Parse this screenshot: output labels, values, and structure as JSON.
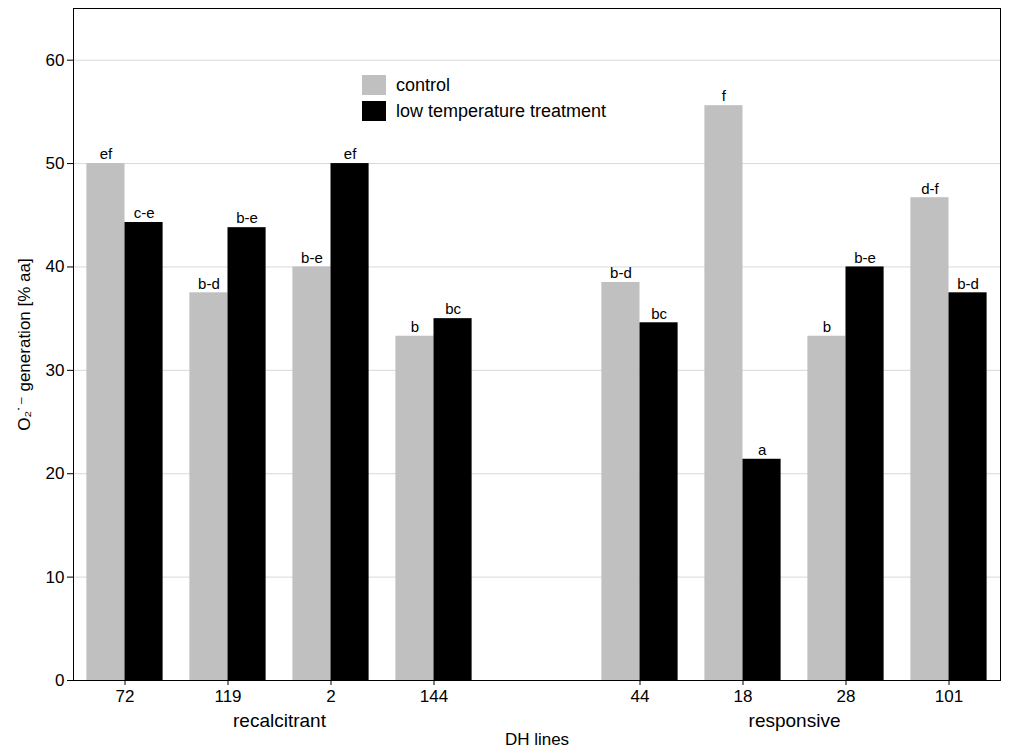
{
  "chart_data": {
    "type": "bar",
    "x_label": "DH lines",
    "y_label": "O₂˙⁻ generation [% aa]",
    "categories": [
      "72",
      "119",
      "2",
      "144",
      null,
      "44",
      "18",
      "28",
      "101"
    ],
    "groups": [
      {
        "label": "recalcitrant",
        "categories": [
          "72",
          "119",
          "2",
          "144"
        ]
      },
      {
        "label": "responsive",
        "categories": [
          "44",
          "18",
          "28",
          "101"
        ]
      }
    ],
    "series": [
      {
        "name": "control",
        "color": "#c0c0c0",
        "values": [
          50,
          37.5,
          40,
          33.3,
          null,
          38.5,
          55.6,
          33.3,
          46.7
        ],
        "annotations": [
          "ef",
          "b-d",
          "b-e",
          "b",
          null,
          "b-d",
          "f",
          "b",
          "d-f"
        ]
      },
      {
        "name": "low temperature treatment",
        "color": "#000000",
        "values": [
          44.3,
          43.8,
          50,
          35,
          null,
          34.6,
          21.4,
          40,
          37.5
        ],
        "annotations": [
          "c-e",
          "b-e",
          "ef",
          "bc",
          null,
          "bc",
          "a",
          "b-e",
          "b-d"
        ]
      }
    ],
    "ylim": [
      0,
      65
    ],
    "yticks": [
      0,
      10,
      20,
      30,
      40,
      50,
      60
    ],
    "grid": true,
    "legend": "upper center"
  }
}
